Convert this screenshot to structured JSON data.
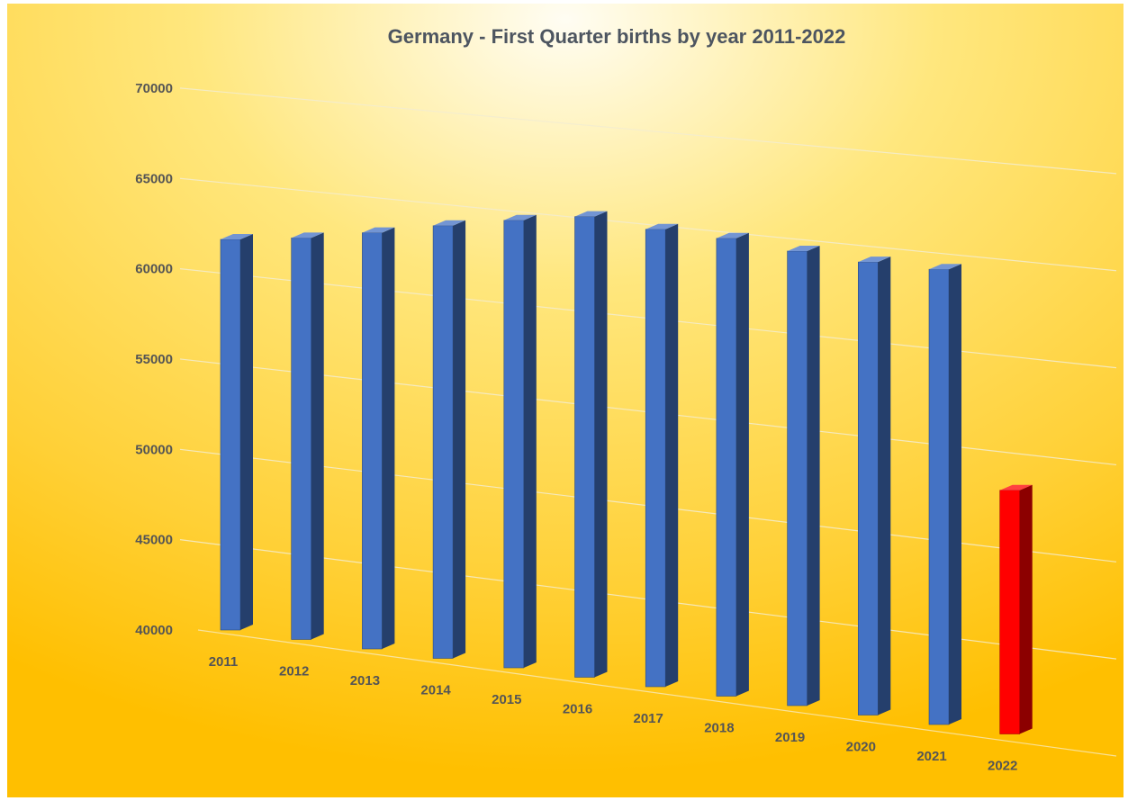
{
  "chart_data": {
    "type": "bar",
    "title": "Germany - First Quarter births by year 2011-2022",
    "xlabel": "",
    "ylabel": "",
    "categories": [
      "2011",
      "2012",
      "2013",
      "2014",
      "2015",
      "2016",
      "2017",
      "2018",
      "2019",
      "2020",
      "2021",
      "2022"
    ],
    "values": [
      62000,
      62500,
      63200,
      64000,
      64700,
      65300,
      65000,
      64900,
      64600,
      64400,
      64400,
      53000
    ],
    "highlight_index": 11,
    "ylim": [
      40000,
      70000
    ],
    "yticks": [
      "40000",
      "45000",
      "50000",
      "55000",
      "60000",
      "65000",
      "70000"
    ],
    "grid": true,
    "legend": "none",
    "view": "3d-perspective",
    "colors": {
      "bar": "#4472c4",
      "bar_highlight": "#ff0000",
      "background_inner": "#fffbe8",
      "background_outer": "#ffc000",
      "text": "#555555"
    }
  }
}
